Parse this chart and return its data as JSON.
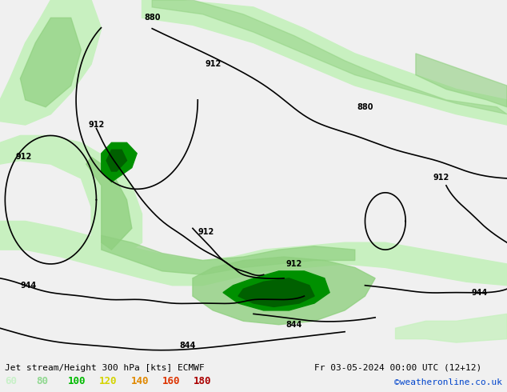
{
  "title_left": "Jet stream/Height 300 hPa [kts] ECMWF",
  "title_right": "Fr 03-05-2024 00:00 UTC (12+12)",
  "credit": "©weatheronline.co.uk",
  "legend_values": [
    "60",
    "80",
    "100",
    "120",
    "140",
    "160",
    "180"
  ],
  "legend_colors": [
    "#c8f0c8",
    "#90d890",
    "#00bb00",
    "#d4d400",
    "#e08800",
    "#dd3300",
    "#aa0000"
  ],
  "bg_color": "#f0f0f0",
  "fig_width": 6.34,
  "fig_height": 4.9,
  "dpi": 100,
  "map_white": "#f8f8f8",
  "land_gray": "#c8c8c8",
  "jet_light": "#c8f0c0",
  "jet_mid": "#90d080",
  "jet_dark": "#009000",
  "jet_vdark": "#006000",
  "bottom_text_color": "#000000",
  "credit_color": "#0044cc",
  "contour_lw": 1.2
}
